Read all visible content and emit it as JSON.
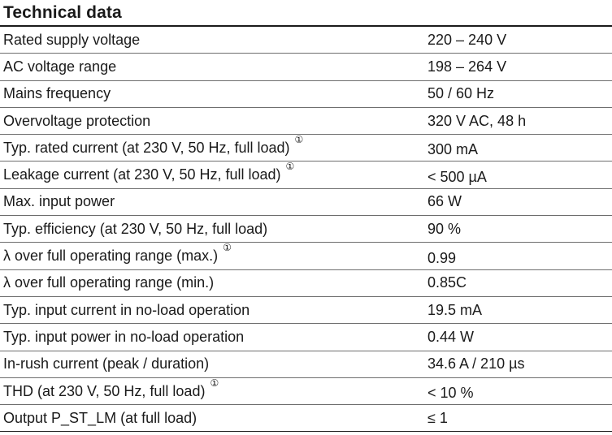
{
  "title": "Technical data",
  "footnote_mark": "①",
  "rows": [
    {
      "label": "Rated supply voltage",
      "value": "220 – 240 V",
      "note": false
    },
    {
      "label": "AC voltage range",
      "value": "198 – 264 V",
      "note": false
    },
    {
      "label": "Mains frequency",
      "value": "50 / 60 Hz",
      "note": false
    },
    {
      "label": "Overvoltage protection",
      "value": "320 V AC, 48 h",
      "note": false
    },
    {
      "label": "Typ. rated current (at 230 V, 50 Hz, full load)",
      "value": "300 mA",
      "note": true
    },
    {
      "label": "Leakage current (at 230 V, 50 Hz, full load)",
      "value": "< 500 µA",
      "note": true
    },
    {
      "label": "Max. input power",
      "value": "66 W",
      "note": false
    },
    {
      "label": "Typ. efficiency (at 230 V, 50 Hz, full load)",
      "value": "90 %",
      "note": false
    },
    {
      "label": "λ over full operating range (max.)",
      "value": "0.99",
      "note": true
    },
    {
      "label": "λ over full operating range (min.)",
      "value": "0.85C",
      "note": false
    },
    {
      "label": "Typ. input current in no-load operation",
      "value": "19.5 mA",
      "note": false
    },
    {
      "label": "Typ. input power in no-load operation",
      "value": "0.44 W",
      "note": false
    },
    {
      "label": "In-rush current (peak / duration)",
      "value": "34.6 A / 210 µs",
      "note": false
    },
    {
      "label": "THD (at 230 V, 50 Hz, full load)",
      "value": "< 10 %",
      "note": true
    },
    {
      "label": "Output P_ST_LM (at full load)",
      "value": "≤ 1",
      "note": false
    }
  ]
}
